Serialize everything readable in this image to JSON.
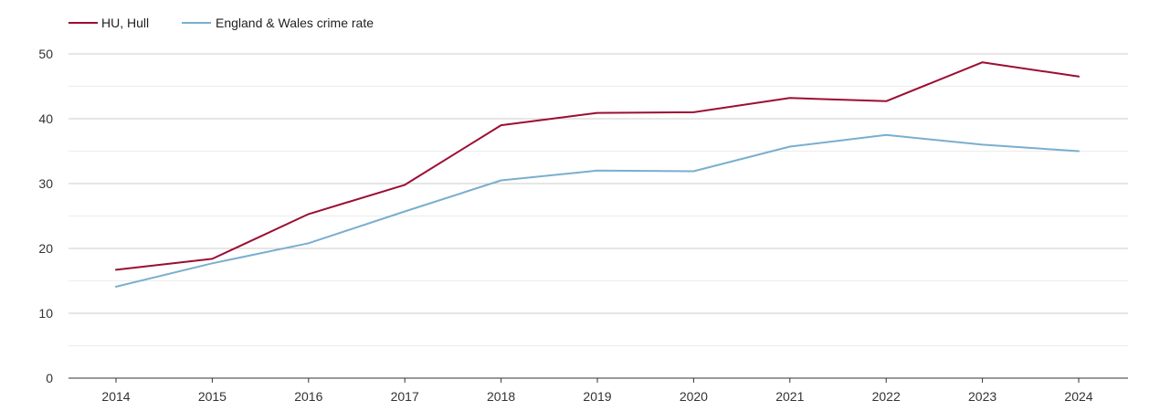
{
  "chart_data": {
    "type": "line",
    "title": "",
    "xlabel": "",
    "ylabel": "",
    "categories": [
      "2014",
      "2015",
      "2016",
      "2017",
      "2018",
      "2019",
      "2020",
      "2021",
      "2022",
      "2023",
      "2024"
    ],
    "series": [
      {
        "name": "HU, Hull",
        "color": "#9b0e32",
        "values": [
          16.7,
          18.4,
          25.3,
          29.8,
          39.0,
          40.9,
          41.0,
          43.2,
          42.7,
          48.7,
          46.5
        ]
      },
      {
        "name": "England & Wales crime rate",
        "color": "#7aaecf",
        "values": [
          14.1,
          17.7,
          20.8,
          25.7,
          30.5,
          32.0,
          31.9,
          35.7,
          37.5,
          36.0,
          35.0
        ]
      }
    ],
    "ylim": [
      0,
      50
    ],
    "yticks": [
      0,
      10,
      20,
      30,
      40,
      50
    ],
    "grid": true,
    "legend": "top-left"
  }
}
